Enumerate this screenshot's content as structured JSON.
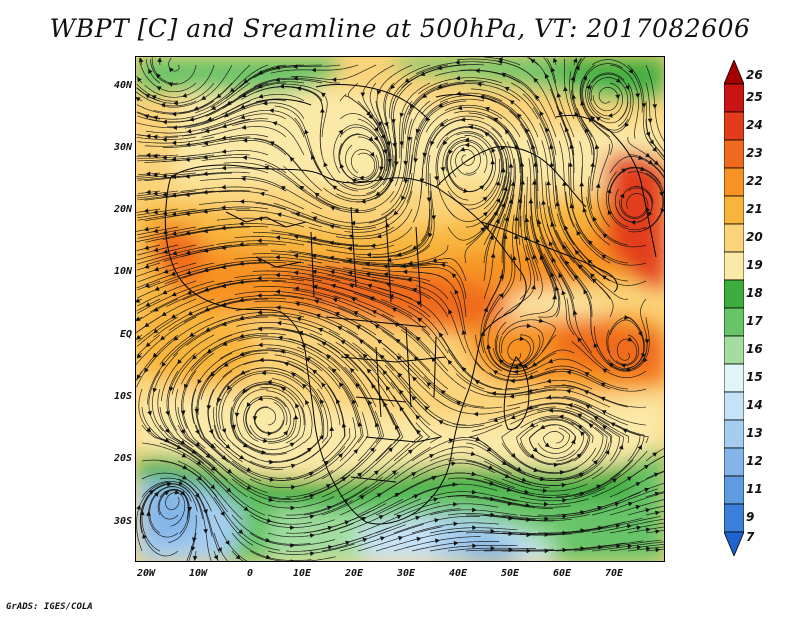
{
  "title": "WBPT [C] and Sreamline at 500hPa, VT: 2017082606",
  "lat_labels": [
    "40N",
    "30N",
    "20N",
    "10N",
    "EQ",
    "10S",
    "20S",
    "30S"
  ],
  "lon_labels": [
    "20W",
    "10W",
    "0",
    "10E",
    "20E",
    "30E",
    "40E",
    "50E",
    "60E",
    "70E"
  ],
  "colorbar": {
    "labels": [
      "26",
      "25",
      "24",
      "23",
      "22",
      "21",
      "20",
      "19",
      "18",
      "17",
      "16",
      "15",
      "14",
      "13",
      "12",
      "11",
      "9",
      "7"
    ],
    "colors": [
      "#a50000",
      "#c81414",
      "#e23c1c",
      "#ef6a1e",
      "#f79224",
      "#f8b53c",
      "#fbd37a",
      "#fbe9a8",
      "#3dad3d",
      "#67c467",
      "#a3dea0",
      "#dff5f8",
      "#c6e2f7",
      "#a6cdf0",
      "#83b5e8",
      "#5f9be0",
      "#3a7fd8",
      "#1f63cf"
    ]
  },
  "credit": "GrADS: IGES/COLA",
  "icons": {
    "map": "streamline-temperature-map"
  }
}
